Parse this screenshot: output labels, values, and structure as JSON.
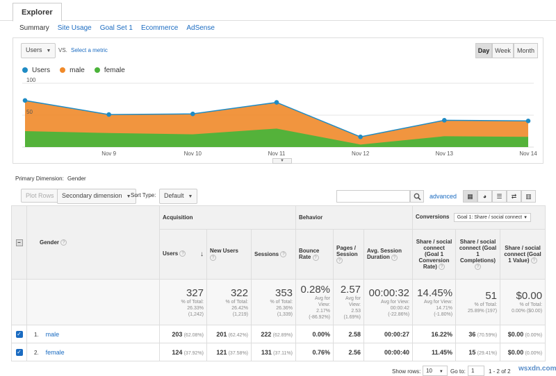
{
  "tabs": {
    "explorer": "Explorer"
  },
  "subtabs": [
    "Summary",
    "Site Usage",
    "Goal Set 1",
    "Ecommerce",
    "AdSense"
  ],
  "chart_controls": {
    "metric": "Users",
    "vs": "VS.",
    "select_metric": "Select a metric",
    "day": "Day",
    "week": "Week",
    "month": "Month"
  },
  "legend": [
    {
      "name": "Users",
      "color": "#1f8bc4"
    },
    {
      "name": "male",
      "color": "#f08a2a"
    },
    {
      "name": "female",
      "color": "#4bb33a"
    }
  ],
  "chart_data": {
    "type": "area",
    "x": [
      "",
      "Nov 9",
      "Nov 10",
      "Nov 11",
      "Nov 12",
      "Nov 13",
      "Nov 14"
    ],
    "ylim": [
      0,
      100
    ],
    "yticks": [
      "100",
      "50"
    ],
    "series": [
      {
        "name": "Users",
        "values": [
          73,
          51,
          52,
          70,
          16,
          42,
          41
        ]
      },
      {
        "name": "male",
        "values": [
          73,
          51,
          52,
          70,
          16,
          42,
          41
        ]
      },
      {
        "name": "female",
        "values": [
          25,
          22,
          20,
          29,
          4,
          17,
          16
        ]
      }
    ],
    "legend_position": "top-left",
    "grid": true
  },
  "primary_dimension": {
    "label": "Primary Dimension:",
    "value": "Gender"
  },
  "toolbar": {
    "plot_rows": "Plot Rows",
    "secondary_dimension": "Secondary dimension",
    "sort_type_label": "Sort Type:",
    "sort_type": "Default",
    "advanced": "advanced"
  },
  "table": {
    "gender_header": "Gender",
    "groups": {
      "acquisition": "Acquisition",
      "behavior": "Behavior",
      "conversions": "Conversions"
    },
    "goal_select": "Goal 1: Share / social connect",
    "columns": [
      "Users",
      "New Users",
      "Sessions",
      "Bounce Rate",
      "Pages / Session",
      "Avg. Session Duration",
      "Share / social connect (Goal 1 Conversion Rate)",
      "Share / social connect (Goal 1 Completions)",
      "Share / social connect (Goal 1 Value)"
    ],
    "totals": [
      {
        "big": "327",
        "small": [
          "% of Total:",
          "26.33%",
          "(1,242)"
        ]
      },
      {
        "big": "322",
        "small": [
          "% of Total:",
          "26.42%",
          "(1,219)"
        ]
      },
      {
        "big": "353",
        "small": [
          "% of Total:",
          "26.36%",
          "(1,339)"
        ]
      },
      {
        "big": "0.28%",
        "small": [
          "Avg for",
          "View:",
          "2.17%",
          "(-86.92%)"
        ]
      },
      {
        "big": "2.57",
        "small": [
          "Avg for",
          "View:",
          "2.53",
          "(1.69%)"
        ]
      },
      {
        "big": "00:00:32",
        "small": [
          "Avg for View:",
          "00:00:42",
          "(-22.86%)"
        ]
      },
      {
        "big": "14.45%",
        "small": [
          "Avg for View:",
          "14.71%",
          "(-1.80%)"
        ]
      },
      {
        "big": "51",
        "small": [
          "% of Total:",
          "25.89% (197)"
        ]
      },
      {
        "big": "$0.00",
        "small": [
          "% of Total:",
          "0.00% ($0.00)"
        ]
      }
    ],
    "rows": [
      {
        "idx": "1.",
        "name": "male",
        "cells": [
          [
            "203",
            "(62.08%)"
          ],
          [
            "201",
            "(62.42%)"
          ],
          [
            "222",
            "(62.89%)"
          ],
          [
            "0.00%",
            ""
          ],
          [
            "2.58",
            ""
          ],
          [
            "00:00:27",
            ""
          ],
          [
            "16.22%",
            ""
          ],
          [
            "36",
            "(70.59%)"
          ],
          [
            "$0.00",
            "(0.00%)"
          ]
        ]
      },
      {
        "idx": "2.",
        "name": "female",
        "cells": [
          [
            "124",
            "(37.92%)"
          ],
          [
            "121",
            "(37.58%)"
          ],
          [
            "131",
            "(37.11%)"
          ],
          [
            "0.76%",
            ""
          ],
          [
            "2.56",
            ""
          ],
          [
            "00:00:40",
            ""
          ],
          [
            "11.45%",
            ""
          ],
          [
            "15",
            "(29.41%)"
          ],
          [
            "$0.00",
            "(0.00%)"
          ]
        ]
      }
    ]
  },
  "pagination": {
    "show_rows_label": "Show rows:",
    "show_rows": "10",
    "goto_label": "Go to:",
    "goto": "1",
    "range": "1 - 2 of 2"
  },
  "watermark": "wsxdn.com"
}
